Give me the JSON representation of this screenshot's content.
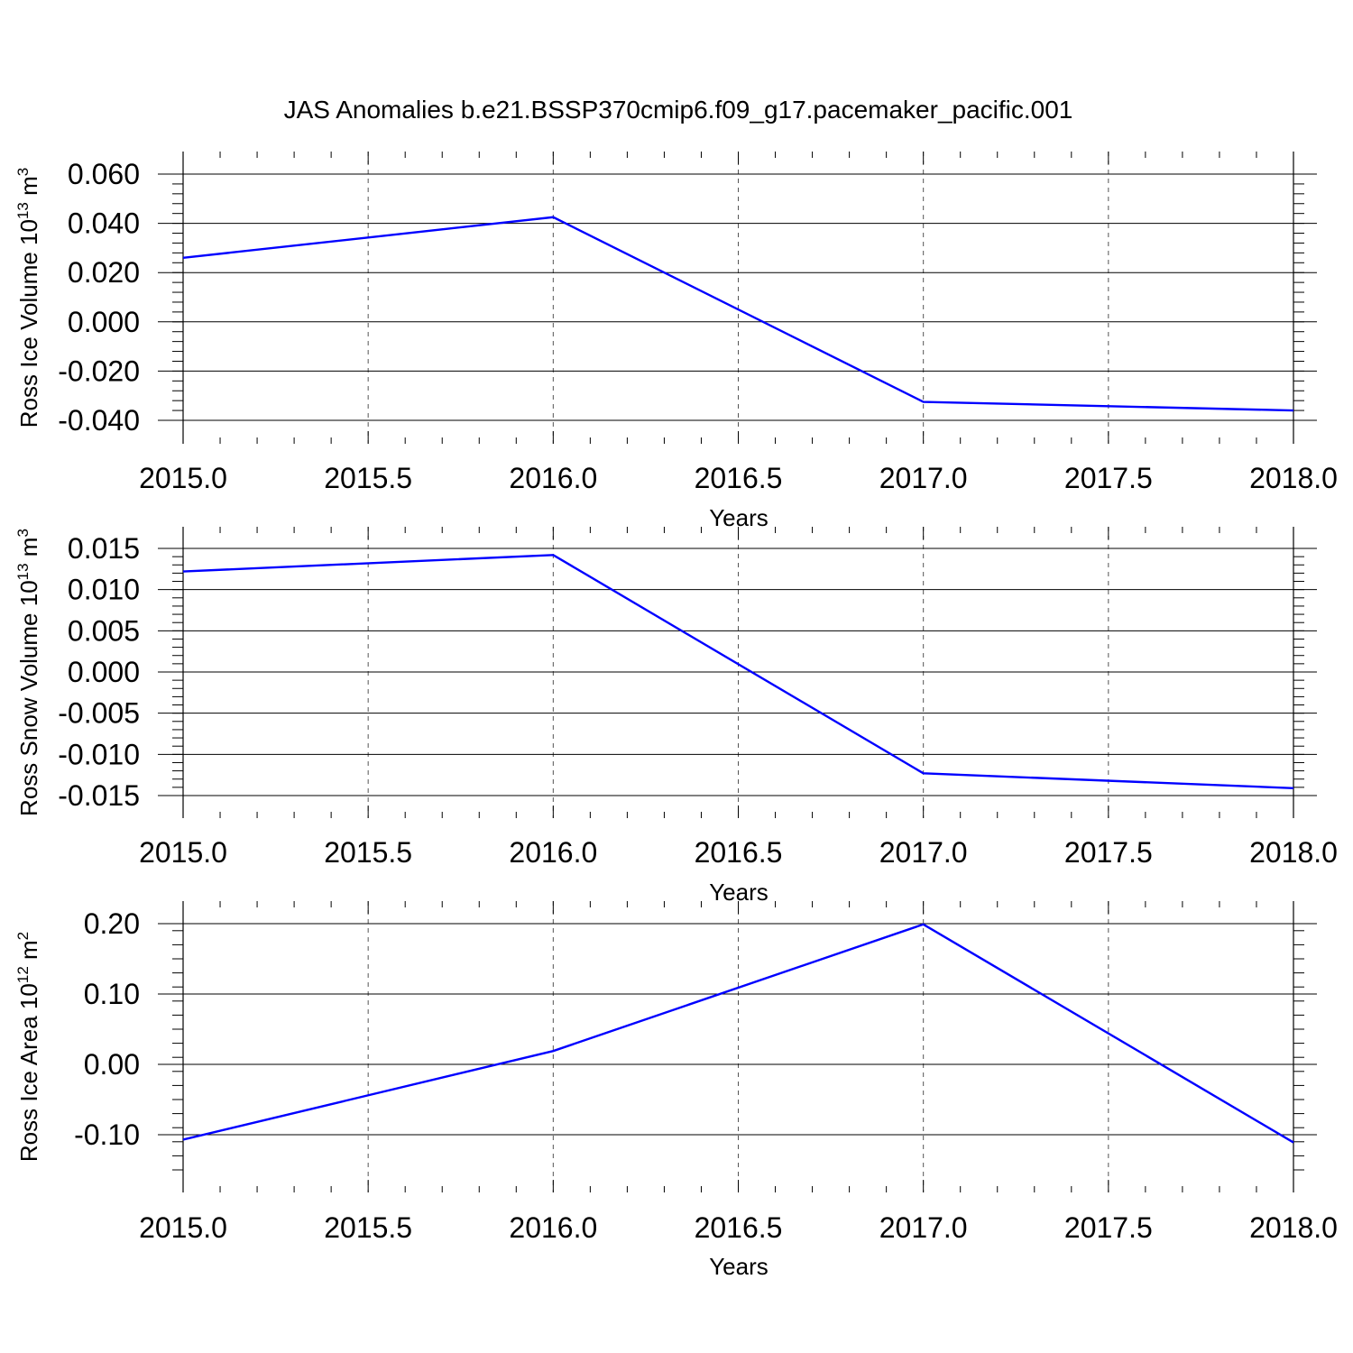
{
  "title": "JAS Anomalies b.e21.BSSP370cmip6.f09_g17.pacemaker_pacific.001",
  "colors": {
    "series": "#0000ff",
    "grid": "#555555",
    "axis": "#000000"
  },
  "chart_data": [
    {
      "type": "line",
      "ylabel": "Ross Ice Volume 10",
      "ylabel_exp": "13",
      "ylabel_unit": " m",
      "ylabel_unit_exp": "3",
      "xlabel": "Years",
      "x": [
        2015,
        2016,
        2017,
        2018
      ],
      "values": [
        0.026,
        0.0425,
        -0.0325,
        -0.036
      ],
      "xlim": [
        2015,
        2018
      ],
      "ylim": [
        -0.04,
        0.06
      ],
      "x_ticks": [
        "2015.0",
        "2015.5",
        "2016.0",
        "2016.5",
        "2017.0",
        "2017.5",
        "2018.0"
      ],
      "y_ticks": [
        "-0.040",
        "-0.020",
        "0.000",
        "0.020",
        "0.040",
        "0.060"
      ],
      "grid": "x-dashed"
    },
    {
      "type": "line",
      "ylabel": "Ross Snow Volume 10",
      "ylabel_exp": "13",
      "ylabel_unit": " m",
      "ylabel_unit_exp": "3",
      "xlabel": "Years",
      "x": [
        2015,
        2016,
        2017,
        2018
      ],
      "values": [
        0.0122,
        0.0142,
        -0.0123,
        -0.0141
      ],
      "xlim": [
        2015,
        2018
      ],
      "ylim": [
        -0.015,
        0.015
      ],
      "x_ticks": [
        "2015.0",
        "2015.5",
        "2016.0",
        "2016.5",
        "2017.0",
        "2017.5",
        "2018.0"
      ],
      "y_ticks": [
        "-0.015",
        "-0.010",
        "-0.005",
        "0.000",
        "0.005",
        "0.010",
        "0.015"
      ],
      "grid": "x-dashed"
    },
    {
      "type": "line",
      "ylabel": "Ross Ice Area 10",
      "ylabel_exp": "12",
      "ylabel_unit": " m",
      "ylabel_unit_exp": "2",
      "xlabel": "Years",
      "x": [
        2015,
        2016,
        2017,
        2018
      ],
      "values": [
        -0.107,
        0.019,
        0.199,
        -0.111
      ],
      "xlim": [
        2015,
        2018
      ],
      "ylim": [
        -0.15,
        0.2
      ],
      "x_ticks": [
        "2015.0",
        "2015.5",
        "2016.0",
        "2016.5",
        "2017.0",
        "2017.5",
        "2018.0"
      ],
      "y_ticks": [
        "-0.10",
        "0.00",
        "0.10",
        "0.20"
      ],
      "grid": "x-dashed"
    }
  ]
}
